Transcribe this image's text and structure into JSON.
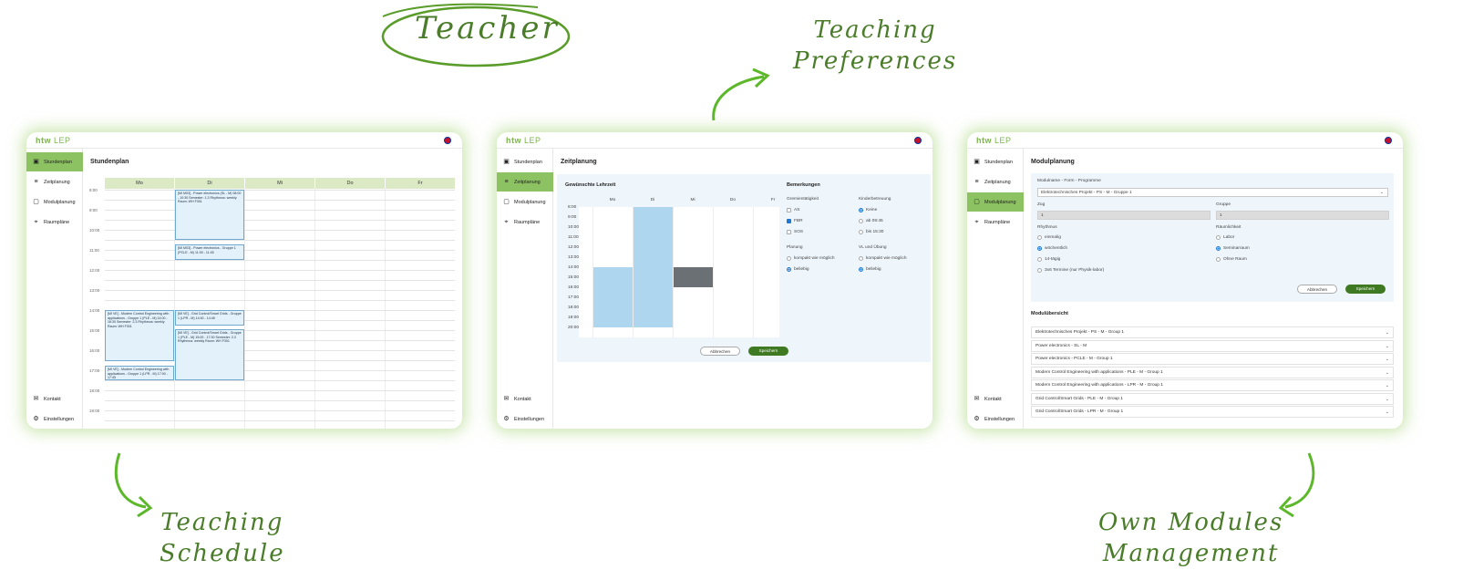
{
  "annotations": {
    "teacher": "Teacher",
    "preferences": [
      "Teaching",
      "Preferences"
    ],
    "schedule": [
      "Teaching",
      "Schedule"
    ],
    "own_modules": [
      "Own Modules",
      "Management"
    ]
  },
  "app": {
    "logo": "htw",
    "logo_suffix": "LEP",
    "nav": {
      "schedule": "Stundenplan",
      "time_planning": "Zeitplanung",
      "module_planning": "Modulplanung",
      "rooms": "Raumpläne",
      "contact": "Kontakt",
      "settings": "Einstellungen"
    },
    "colors": {
      "accent": "#8dc263",
      "primary_button": "#3f7a22",
      "glow": "#a0d26e"
    }
  },
  "schedule_window": {
    "title": "Stundenplan",
    "days": [
      "Mo",
      "Di",
      "Mi",
      "Do",
      "Fr"
    ],
    "times": [
      "8:00",
      "9:00",
      "10:00",
      "11:00",
      "12:00",
      "13:00",
      "14:00",
      "15:00",
      "16:00",
      "17:00",
      "18:00",
      "19:00"
    ],
    "events": [
      {
        "text": "[MI M03] - Power electronics (SL - M) 08:00 - 10:30 Semester: 1,3 Rhythmus: weekly Raum: WH F301"
      },
      {
        "text": "[MI M03] - Power electronics - Gruppe 1 (PCLE - M) 11:00 - 11:45"
      },
      {
        "text": "[MI VE] - Modern Control Engineering with applications - Gruppe 1 (PLE - M) 14:00 - 16:30 Semester: 2,3 Rhythmus: weekly Raum: WH F301"
      },
      {
        "text": "[MI VE] - Grid Control/Smart Grids - Gruppe 1 (LPR - M) 14:00 - 14:45"
      },
      {
        "text": "[MI VE] - Grid Control/Smart Grids - Gruppe 1 (PLE - M) 15:00 - 17:30 Semester: 2,3 Rhythmus: weekly Raum: WH F301"
      },
      {
        "text": "[MI VE] - Modern Control Engineering with applications - Gruppe 1 (LPR - M) 17:00 - 17:45"
      }
    ]
  },
  "pref_window": {
    "title": "Zeitplanung",
    "grid_title": "Gewünschte Lehrzeit",
    "days": [
      "Mo",
      "Di",
      "Mi",
      "Do",
      "Fr"
    ],
    "times": [
      "8:00",
      "9:00",
      "10:00",
      "11:00",
      "12:00",
      "13:00",
      "14:00",
      "15:00",
      "16:00",
      "17:00",
      "18:00",
      "19:00",
      "20:00"
    ],
    "remarks_title": "Bemerkungen",
    "committee": {
      "label": "Gremientätigkeit",
      "options": [
        "AS",
        "FBR",
        "SOS"
      ],
      "checked": [
        false,
        true,
        false
      ]
    },
    "childcare": {
      "label": "Kinderbetreuung",
      "options": [
        "Keine",
        "ab 09:45",
        "bis 15:30"
      ],
      "selected": 0
    },
    "planning": {
      "label": "Planung",
      "options": [
        "kompakt wie möglich",
        "beliebig"
      ],
      "selected": 1
    },
    "lecture_exercise": {
      "label": "VL und Übung",
      "options": [
        "kompakt wie möglich",
        "beliebig"
      ],
      "selected": 1
    },
    "cancel": "Abbrechen",
    "save": "Speichern",
    "colors": {
      "preferred": "#aed6ef",
      "blocked": "#6b7075"
    }
  },
  "module_window": {
    "title": "Modulplanung",
    "form": {
      "module_label": "Modulname - Form - Programme",
      "module_value": "Elektrotechnisches Projekt - PS - M - Gruppe 1",
      "train_label": "Zug",
      "train_value": "1",
      "group_label": "Gruppe",
      "group_value": "1",
      "rhythm_label": "Rhythmus",
      "rhythm_options": [
        "einmalig",
        "wöchentlich",
        "14-tägig",
        "3x6 Termine (nur Physik-labor)"
      ],
      "rhythm_selected": 1,
      "room_label": "Räumlichkeit",
      "room_options": [
        "Labor",
        "Seminarraum",
        "Ohne Raum"
      ],
      "room_selected": 1,
      "cancel": "Abbrechen",
      "save": "Speichern"
    },
    "overview_title": "Modulübersicht",
    "modules": [
      "Elektrotechnisches Projekt - PS - M - Group 1",
      "Power electronics - SL - M",
      "Power electronics - PCLE - M - Group 1",
      "Modern Control Engineering with applications - PLE - M - Group 1",
      "Modern Control Engineering with applications - LPR - M - Group 1",
      "Grid Control/Smart Grids - PLE - M - Group 1",
      "Grid Control/Smart Grids - LPR - M - Group 1"
    ]
  }
}
